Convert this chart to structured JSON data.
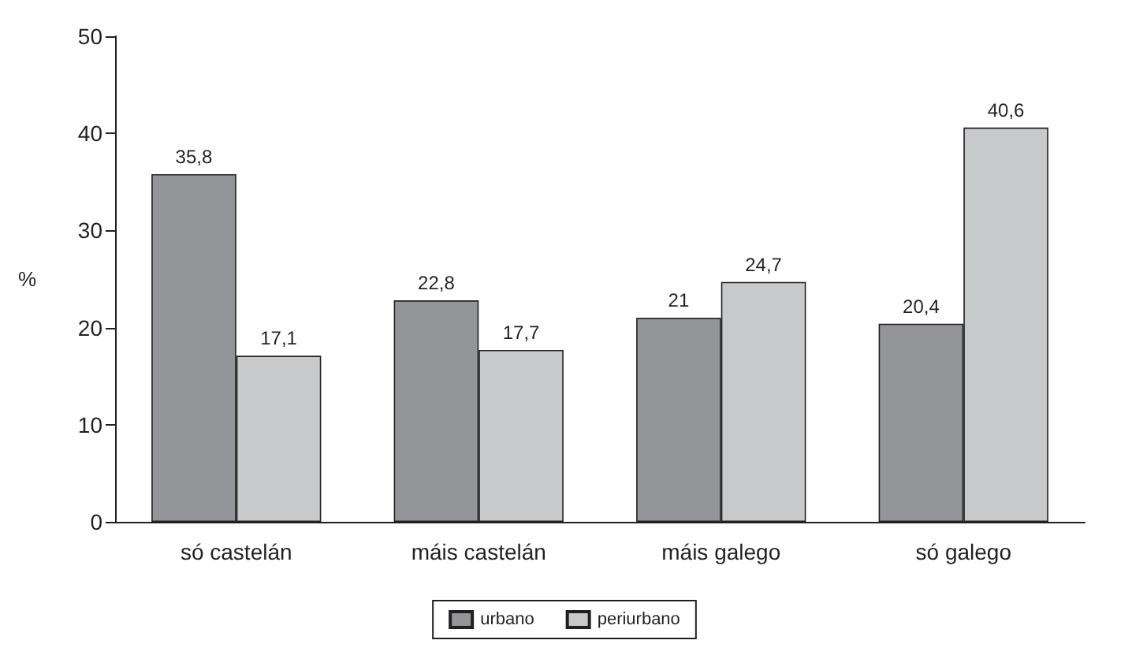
{
  "chart_data": {
    "type": "bar",
    "ylabel": "%",
    "categories": [
      "só castelán",
      "máis castelán",
      "máis galego",
      "só galego"
    ],
    "series": [
      {
        "name": "urbano",
        "color": "#939598",
        "values": [
          35.8,
          22.8,
          21,
          20.4
        ],
        "value_labels": [
          "35,8",
          "22,8",
          "21",
          "20,4"
        ]
      },
      {
        "name": "periurbano",
        "color": "#c8c9cb",
        "values": [
          17.1,
          17.7,
          24.7,
          40.6
        ],
        "value_labels": [
          "17,1",
          "17,7",
          "24,7",
          "40,6"
        ]
      }
    ],
    "ylim": [
      0,
      50
    ],
    "yticks": [
      0,
      10,
      20,
      30,
      40,
      50
    ],
    "grid": false,
    "legend": "bottom"
  }
}
